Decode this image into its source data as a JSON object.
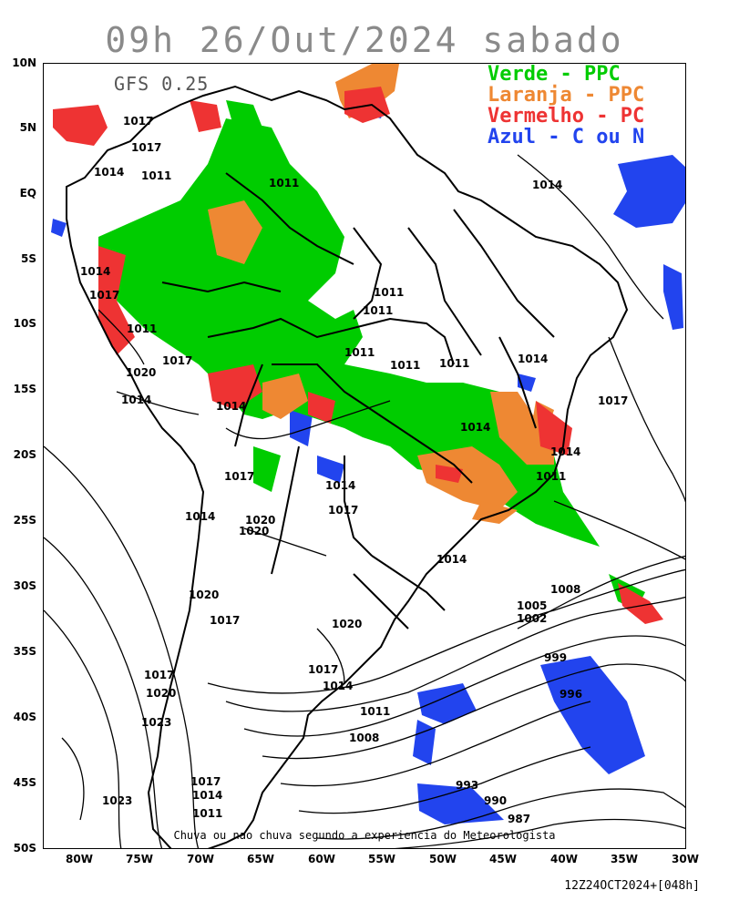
{
  "title": "09h 26/Out/2024 sabado",
  "model_label": "GFS 0.25",
  "legend": [
    {
      "text": "Verde - PPC",
      "color": "#00cc00"
    },
    {
      "text": "Laranja - PPC",
      "color": "#ee8833"
    },
    {
      "text": "Vermelho - PC",
      "color": "#ee3333"
    },
    {
      "text": "Azul - C ou N",
      "color": "#2244ee"
    }
  ],
  "footer_note": "Chuva ou nao chuva segundo a experiencia do Meteorologista",
  "run_stamp": "12Z24OCT2024+[048h]",
  "lat_labels": [
    "10N",
    "5N",
    "EQ",
    "5S",
    "10S",
    "15S",
    "20S",
    "25S",
    "30S",
    "35S",
    "40S",
    "45S",
    "50S"
  ],
  "lon_labels": [
    "80W",
    "75W",
    "70W",
    "65W",
    "60W",
    "55W",
    "50W",
    "45W",
    "40W",
    "35W",
    "30W"
  ],
  "isobar_labels": [
    "1017",
    "1017",
    "1014",
    "1011",
    "1011",
    "1014",
    "1014",
    "1017",
    "1011",
    "1020",
    "1017",
    "1014",
    "1014",
    "1011",
    "1011",
    "1011",
    "1011",
    "1011",
    "1014",
    "1017",
    "1014",
    "1014",
    "1011",
    "1017",
    "1014",
    "1017",
    "1020",
    "1020",
    "1014",
    "1020",
    "1017",
    "1014",
    "1020",
    "1008",
    "1005",
    "1002",
    "999",
    "996",
    "1017",
    "1014",
    "1011",
    "1008",
    "1017",
    "1020",
    "1023",
    "1017",
    "1014",
    "1011",
    "1023",
    "993",
    "990",
    "987"
  ]
}
